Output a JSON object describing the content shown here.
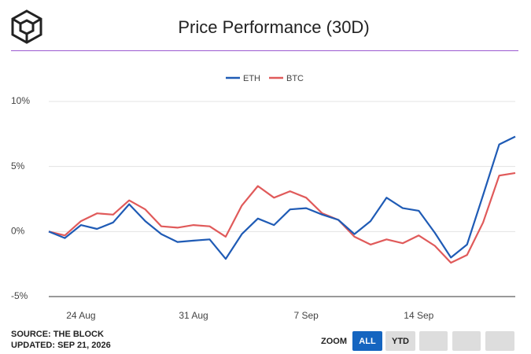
{
  "header": {
    "title": "Price Performance (30D)"
  },
  "chart_data": {
    "type": "line",
    "categories": [
      null,
      null,
      "24 Aug",
      null,
      null,
      null,
      null,
      null,
      null,
      "31 Aug",
      null,
      null,
      null,
      null,
      null,
      null,
      "7 Sep",
      null,
      null,
      null,
      null,
      null,
      null,
      "14 Sep",
      null,
      null,
      null,
      null,
      null,
      null
    ],
    "series": [
      {
        "name": "ETH",
        "color": "#1f5bb5",
        "values": [
          0,
          -0.5,
          0.5,
          0.2,
          0.7,
          2.1,
          0.8,
          -0.2,
          -0.8,
          -0.7,
          -0.6,
          -2.1,
          -0.2,
          1.0,
          0.5,
          1.7,
          1.8,
          1.3,
          0.9,
          -0.2,
          0.8,
          2.6,
          1.8,
          1.6,
          -0.1,
          -2.0,
          -1.0,
          2.8,
          6.7,
          7.3
        ]
      },
      {
        "name": "BTC",
        "color": "#e05a5a",
        "values": [
          0,
          -0.3,
          0.8,
          1.4,
          1.3,
          2.4,
          1.7,
          0.4,
          0.3,
          0.5,
          0.4,
          -0.4,
          2.0,
          3.5,
          2.6,
          3.1,
          2.6,
          1.4,
          0.9,
          -0.4,
          -1.0,
          -0.6,
          -0.9,
          -0.3,
          -1.1,
          -2.4,
          -1.8,
          0.7,
          4.3,
          4.5
        ]
      }
    ],
    "ylim": [
      -5,
      10
    ],
    "yticks": [
      {
        "value": -5,
        "label": "-5%"
      },
      {
        "value": 0,
        "label": "0%"
      },
      {
        "value": 5,
        "label": "5%"
      },
      {
        "value": 10,
        "label": "10%"
      }
    ],
    "grid": true,
    "legend": "top"
  },
  "footer": {
    "source": "SOURCE: THE BLOCK",
    "updated": "UPDATED: SEP 21, 2026"
  },
  "zoom": {
    "label": "ZOOM",
    "buttons": [
      "ALL",
      "YTD"
    ]
  }
}
